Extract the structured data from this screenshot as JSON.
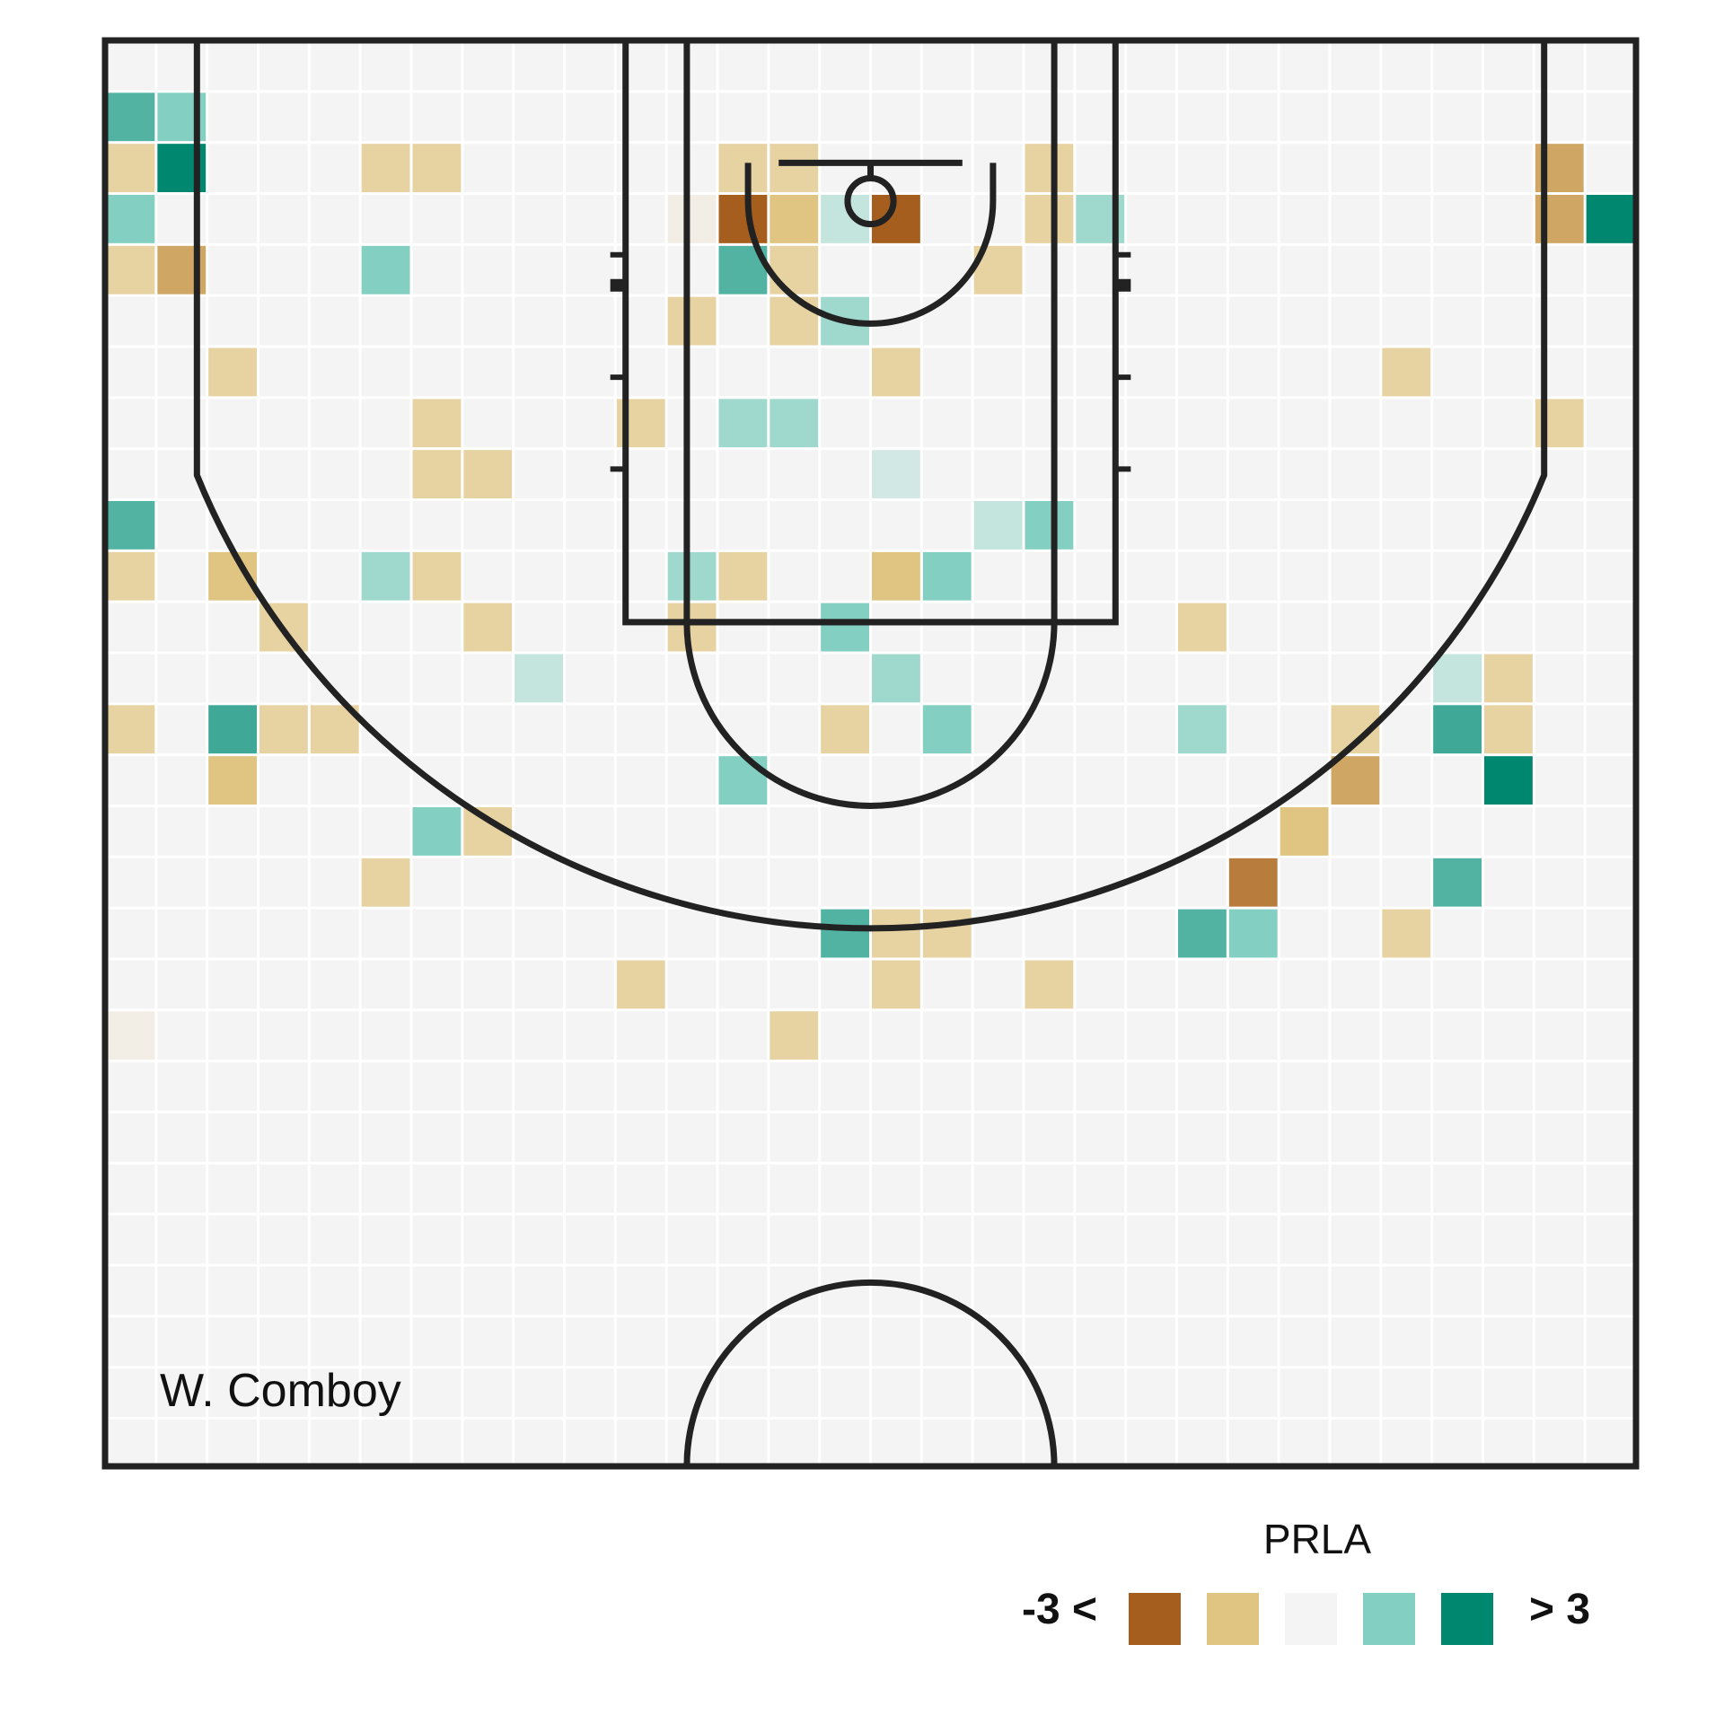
{
  "chart_data": {
    "type": "heatmap",
    "player_label": "W. Comboy",
    "grid": {
      "columns": 30,
      "rows": 28,
      "cell_feet": 1.6667
    },
    "colors": {
      "neg_strong": "#A65E1E",
      "neg_mid": "#B87C3C",
      "neg_light": "#CFA664",
      "neg_pale": "#DFC482",
      "neg_faint": "#E7D2A2",
      "neg_trace": "#EBDFC2",
      "neg_whisper": "#F2EEE6",
      "neutral": "#F4F4F4",
      "pos_whisper": "#D2E8E4",
      "pos_faint": "#C3E5DE",
      "pos_pale": "#9FD9CD",
      "pos_light": "#83CFC2",
      "pos_mid": "#52B3A2",
      "pos_deep": "#40A897",
      "pos_strong": "#00876F",
      "court_line": "#222222",
      "grid_line": "#ffffff"
    },
    "legend": {
      "title": "PRLA",
      "low_label": "-3 <",
      "high_label": "> 3",
      "swatches": [
        "neg_strong",
        "neg_pale",
        "neutral",
        "pos_light",
        "pos_strong"
      ]
    },
    "cells": [
      {
        "col": 0,
        "row": 1,
        "value": 2.3
      },
      {
        "col": 1,
        "row": 1,
        "value": 1.4
      },
      {
        "col": 0,
        "row": 2,
        "value": -0.8
      },
      {
        "col": 1,
        "row": 2,
        "value": 3.2
      },
      {
        "col": 0,
        "row": 3,
        "value": 1.3
      },
      {
        "col": 0,
        "row": 4,
        "value": -0.8
      },
      {
        "col": 1,
        "row": 4,
        "value": -1.6
      },
      {
        "col": 5,
        "row": 2,
        "value": -0.7
      },
      {
        "col": 6,
        "row": 2,
        "value": -0.7
      },
      {
        "col": 5,
        "row": 4,
        "value": 1.3
      },
      {
        "col": 2,
        "row": 6,
        "value": -0.7
      },
      {
        "col": 6,
        "row": 7,
        "value": -0.7
      },
      {
        "col": 6,
        "row": 8,
        "value": -0.7
      },
      {
        "col": 7,
        "row": 8,
        "value": -0.7
      },
      {
        "col": 0,
        "row": 9,
        "value": 2.3
      },
      {
        "col": 0,
        "row": 10,
        "value": -0.6
      },
      {
        "col": 2,
        "row": 10,
        "value": -0.9
      },
      {
        "col": 5,
        "row": 10,
        "value": 1.1
      },
      {
        "col": 6,
        "row": 10,
        "value": -0.7
      },
      {
        "col": 3,
        "row": 11,
        "value": -0.8
      },
      {
        "col": 7,
        "row": 11,
        "value": -0.7
      },
      {
        "col": 8,
        "row": 12,
        "value": 0.7
      },
      {
        "col": 0,
        "row": 13,
        "value": -0.8
      },
      {
        "col": 2,
        "row": 13,
        "value": 2.4
      },
      {
        "col": 3,
        "row": 13,
        "value": -0.7
      },
      {
        "col": 4,
        "row": 13,
        "value": -0.7
      },
      {
        "col": 2,
        "row": 14,
        "value": -0.9
      },
      {
        "col": 6,
        "row": 15,
        "value": 1.4
      },
      {
        "col": 7,
        "row": 15,
        "value": -0.8
      },
      {
        "col": 5,
        "row": 16,
        "value": -0.7
      },
      {
        "col": 0,
        "row": 19,
        "value": -0.3
      },
      {
        "col": 12,
        "row": 2,
        "value": -0.7
      },
      {
        "col": 13,
        "row": 2,
        "value": -0.7
      },
      {
        "col": 11,
        "row": 3,
        "value": -0.4
      },
      {
        "col": 12,
        "row": 3,
        "value": -3.2
      },
      {
        "col": 13,
        "row": 3,
        "value": -1.0
      },
      {
        "col": 14,
        "row": 3,
        "value": 0.6
      },
      {
        "col": 15,
        "row": 3,
        "value": -3.2
      },
      {
        "col": 18,
        "row": 2,
        "value": -0.7
      },
      {
        "col": 18,
        "row": 3,
        "value": -0.7
      },
      {
        "col": 19,
        "row": 3,
        "value": 1.0
      },
      {
        "col": 12,
        "row": 4,
        "value": 2.3
      },
      {
        "col": 13,
        "row": 4,
        "value": -0.8
      },
      {
        "col": 17,
        "row": 4,
        "value": -0.7
      },
      {
        "col": 11,
        "row": 5,
        "value": -0.7
      },
      {
        "col": 13,
        "row": 5,
        "value": -0.8
      },
      {
        "col": 14,
        "row": 5,
        "value": 1.0
      },
      {
        "col": 15,
        "row": 6,
        "value": -0.7
      },
      {
        "col": 10,
        "row": 7,
        "value": -0.7
      },
      {
        "col": 12,
        "row": 7,
        "value": 1.0
      },
      {
        "col": 13,
        "row": 7,
        "value": 1.1
      },
      {
        "col": 15,
        "row": 8,
        "value": 0.5
      },
      {
        "col": 17,
        "row": 9,
        "value": 0.6
      },
      {
        "col": 18,
        "row": 9,
        "value": 1.2
      },
      {
        "col": 11,
        "row": 10,
        "value": 1.1
      },
      {
        "col": 12,
        "row": 10,
        "value": -0.7
      },
      {
        "col": 15,
        "row": 10,
        "value": -1.1
      },
      {
        "col": 16,
        "row": 10,
        "value": 1.2
      },
      {
        "col": 11,
        "row": 11,
        "value": -0.7
      },
      {
        "col": 14,
        "row": 11,
        "value": 1.3
      },
      {
        "col": 15,
        "row": 12,
        "value": 1.1
      },
      {
        "col": 14,
        "row": 13,
        "value": -0.7
      },
      {
        "col": 16,
        "row": 13,
        "value": 1.2
      },
      {
        "col": 12,
        "row": 14,
        "value": 1.3
      },
      {
        "col": 14,
        "row": 17,
        "value": 2.3
      },
      {
        "col": 15,
        "row": 17,
        "value": -0.8
      },
      {
        "col": 16,
        "row": 17,
        "value": -0.7
      },
      {
        "col": 10,
        "row": 18,
        "value": -0.7
      },
      {
        "col": 15,
        "row": 18,
        "value": -0.7
      },
      {
        "col": 18,
        "row": 18,
        "value": -0.7
      },
      {
        "col": 13,
        "row": 19,
        "value": -0.7
      },
      {
        "col": 28,
        "row": 2,
        "value": -1.8
      },
      {
        "col": 28,
        "row": 3,
        "value": -1.8
      },
      {
        "col": 29,
        "row": 3,
        "value": 3.2
      },
      {
        "col": 25,
        "row": 6,
        "value": -0.7
      },
      {
        "col": 28,
        "row": 7,
        "value": -0.8
      },
      {
        "col": 21,
        "row": 11,
        "value": -0.7
      },
      {
        "col": 26,
        "row": 12,
        "value": 0.6
      },
      {
        "col": 27,
        "row": 12,
        "value": -0.7
      },
      {
        "col": 21,
        "row": 13,
        "value": 1.1
      },
      {
        "col": 24,
        "row": 13,
        "value": -0.7
      },
      {
        "col": 26,
        "row": 13,
        "value": 2.6
      },
      {
        "col": 27,
        "row": 13,
        "value": -0.7
      },
      {
        "col": 24,
        "row": 14,
        "value": -1.8
      },
      {
        "col": 27,
        "row": 14,
        "value": 3.2
      },
      {
        "col": 23,
        "row": 15,
        "value": -1.2
      },
      {
        "col": 22,
        "row": 16,
        "value": -2.5
      },
      {
        "col": 26,
        "row": 16,
        "value": 2.3
      },
      {
        "col": 21,
        "row": 17,
        "value": 2.2
      },
      {
        "col": 22,
        "row": 17,
        "value": 1.4
      },
      {
        "col": 25,
        "row": 17,
        "value": -0.7
      }
    ]
  }
}
